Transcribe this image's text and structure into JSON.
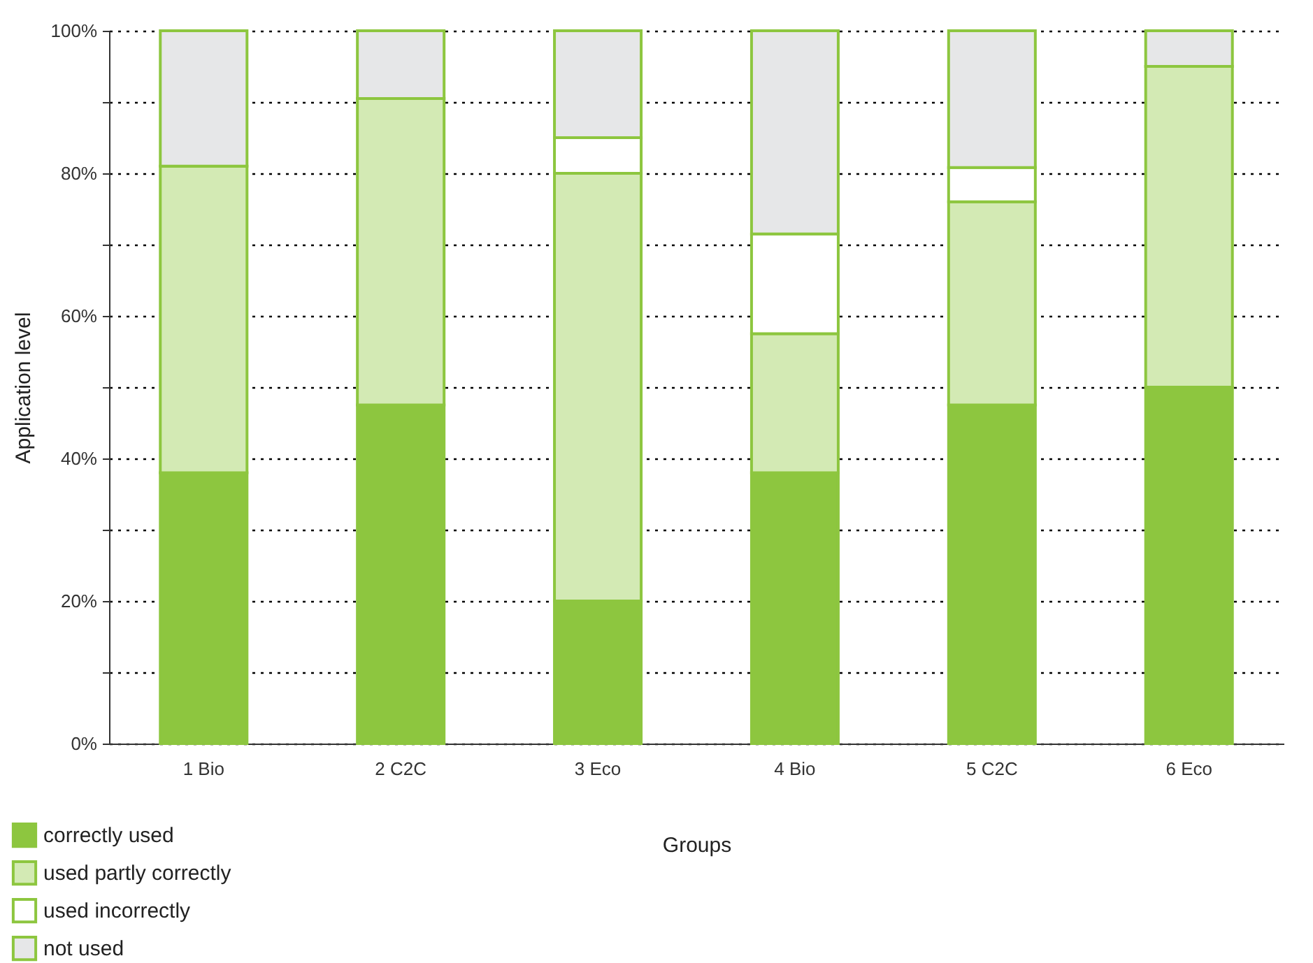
{
  "chart_data": {
    "type": "bar",
    "stacked": true,
    "xlabel": "Groups",
    "ylabel": "Application level",
    "categories": [
      "1 Bio",
      "2 C2C",
      "3 Eco",
      "4 Bio",
      "5 C2C",
      "6 Eco"
    ],
    "series": [
      {
        "name": "correctly used",
        "color": "#8dc63f",
        "values": [
          38,
          47.5,
          20,
          38,
          47.5,
          50
        ]
      },
      {
        "name": "used partly correctly",
        "color": "#d3eab4",
        "values": [
          43,
          43,
          60,
          19.5,
          28.5,
          45
        ]
      },
      {
        "name": "used incorrectly",
        "color": "#ffffff",
        "values": [
          0,
          0,
          5,
          14,
          4.8,
          0
        ]
      },
      {
        "name": "not used",
        "color": "#e6e7e8",
        "values": [
          19,
          9.5,
          15,
          28.5,
          19.2,
          5
        ]
      }
    ],
    "ylim": [
      0,
      100
    ],
    "yticks": [
      {
        "value": 0,
        "label": "0%"
      },
      {
        "value": 10,
        "label": null
      },
      {
        "value": 20,
        "label": "20%"
      },
      {
        "value": 30,
        "label": null
      },
      {
        "value": 40,
        "label": "40%"
      },
      {
        "value": 50,
        "label": null
      },
      {
        "value": 60,
        "label": "60%"
      },
      {
        "value": 70,
        "label": null
      },
      {
        "value": 80,
        "label": "80%"
      },
      {
        "value": 90,
        "label": null
      },
      {
        "value": 100,
        "label": "100%"
      }
    ],
    "grid": "y",
    "legend": "bottom left"
  }
}
